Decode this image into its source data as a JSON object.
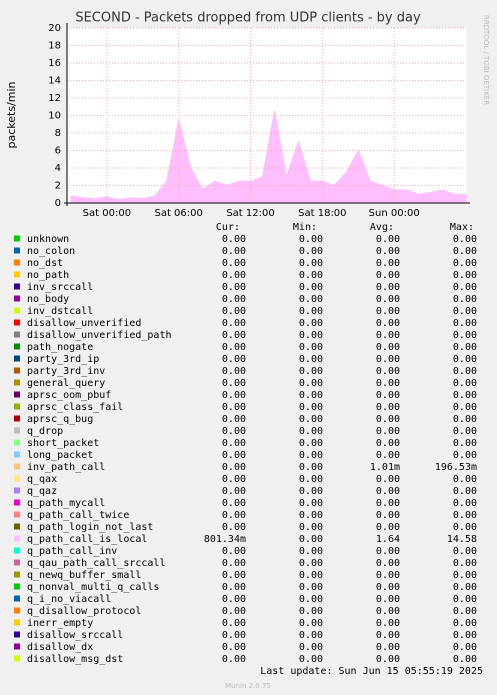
{
  "chart_data": {
    "type": "area",
    "title": "SECOND - Packets dropped from UDP clients - by day",
    "y_label": "packets/min",
    "side_label": "RRDTOOL / TOBI OETIKER",
    "x": [
      -3,
      -2,
      -1,
      0,
      1,
      2,
      3,
      4,
      5,
      6,
      7,
      8,
      9,
      10,
      11,
      12,
      13,
      14,
      15,
      16,
      17,
      18,
      19,
      20,
      21,
      22,
      23,
      24,
      25,
      26,
      27,
      28,
      29,
      30
    ],
    "series": [
      {
        "name": "q_path_call_is_local",
        "color": "#ffbfff",
        "values": [
          0.8,
          0.6,
          0.5,
          0.7,
          0.4,
          0.6,
          0.5,
          0.8,
          2.5,
          9.5,
          4,
          1.5,
          2.5,
          2,
          2.5,
          2.5,
          3,
          10.5,
          3,
          7,
          2.5,
          2.5,
          2,
          3.5,
          6,
          2.5,
          2,
          1.5,
          1.5,
          1,
          1.2,
          1.5,
          1,
          1
        ]
      }
    ],
    "xlim": [
      -3.33,
      30
    ],
    "xticks": [
      {
        "value": 0,
        "label": "Sat 00:00"
      },
      {
        "value": 6,
        "label": "Sat 06:00"
      },
      {
        "value": 12,
        "label": "Sat 12:00"
      },
      {
        "value": 18,
        "label": "Sat 18:00"
      },
      {
        "value": 24,
        "label": "Sun 00:00"
      }
    ],
    "ylim": [
      0,
      20
    ],
    "yticks": [
      0,
      2,
      4,
      6,
      8,
      10,
      12,
      14,
      16,
      18,
      20
    ],
    "grid": true
  },
  "legend": {
    "headers": [
      "Cur:",
      "Min:",
      "Avg:",
      "Max:"
    ],
    "rows": [
      {
        "name": "unknown",
        "color": "#00cc00",
        "stats": [
          "0.00",
          "0.00",
          "0.00",
          "0.00"
        ]
      },
      {
        "name": "no_colon",
        "color": "#0066b3",
        "stats": [
          "0.00",
          "0.00",
          "0.00",
          "0.00"
        ]
      },
      {
        "name": "no_dst",
        "color": "#ff8000",
        "stats": [
          "0.00",
          "0.00",
          "0.00",
          "0.00"
        ]
      },
      {
        "name": "no_path",
        "color": "#ffcc00",
        "stats": [
          "0.00",
          "0.00",
          "0.00",
          "0.00"
        ]
      },
      {
        "name": "inv_srccall",
        "color": "#330099",
        "stats": [
          "0.00",
          "0.00",
          "0.00",
          "0.00"
        ]
      },
      {
        "name": "no_body",
        "color": "#990099",
        "stats": [
          "0.00",
          "0.00",
          "0.00",
          "0.00"
        ]
      },
      {
        "name": "inv_dstcall",
        "color": "#ccff00",
        "stats": [
          "0.00",
          "0.00",
          "0.00",
          "0.00"
        ]
      },
      {
        "name": "disallow_unverified",
        "color": "#ff0000",
        "stats": [
          "0.00",
          "0.00",
          "0.00",
          "0.00"
        ]
      },
      {
        "name": "disallow_unverified_path",
        "color": "#808080",
        "stats": [
          "0.00",
          "0.00",
          "0.00",
          "0.00"
        ]
      },
      {
        "name": "path_nogate",
        "color": "#008f00",
        "stats": [
          "0.00",
          "0.00",
          "0.00",
          "0.00"
        ]
      },
      {
        "name": "party_3rd_ip",
        "color": "#00487d",
        "stats": [
          "0.00",
          "0.00",
          "0.00",
          "0.00"
        ]
      },
      {
        "name": "party_3rd_inv",
        "color": "#b35a00",
        "stats": [
          "0.00",
          "0.00",
          "0.00",
          "0.00"
        ]
      },
      {
        "name": "general_query",
        "color": "#b38f00",
        "stats": [
          "0.00",
          "0.00",
          "0.00",
          "0.00"
        ]
      },
      {
        "name": "aprsc_oom_pbuf",
        "color": "#6b006b",
        "stats": [
          "0.00",
          "0.00",
          "0.00",
          "0.00"
        ]
      },
      {
        "name": "aprsc_class_fail",
        "color": "#8fb300",
        "stats": [
          "0.00",
          "0.00",
          "0.00",
          "0.00"
        ]
      },
      {
        "name": "aprsc_q_bug",
        "color": "#b30000",
        "stats": [
          "0.00",
          "0.00",
          "0.00",
          "0.00"
        ]
      },
      {
        "name": "q_drop",
        "color": "#bebebe",
        "stats": [
          "0.00",
          "0.00",
          "0.00",
          "0.00"
        ]
      },
      {
        "name": "short_packet",
        "color": "#80ff80",
        "stats": [
          "0.00",
          "0.00",
          "0.00",
          "0.00"
        ]
      },
      {
        "name": "long_packet",
        "color": "#80c9ff",
        "stats": [
          "0.00",
          "0.00",
          "0.00",
          "0.00"
        ]
      },
      {
        "name": "inv_path_call",
        "color": "#ffc080",
        "stats": [
          "0.00",
          "0.00",
          "1.01m",
          "196.53m"
        ]
      },
      {
        "name": "q_qax",
        "color": "#ffe680",
        "stats": [
          "0.00",
          "0.00",
          "0.00",
          "0.00"
        ]
      },
      {
        "name": "q_qaz",
        "color": "#aa80ff",
        "stats": [
          "0.00",
          "0.00",
          "0.00",
          "0.00"
        ]
      },
      {
        "name": "q_path_mycall",
        "color": "#ee00cc",
        "stats": [
          "0.00",
          "0.00",
          "0.00",
          "0.00"
        ]
      },
      {
        "name": "q_path_call_twice",
        "color": "#ff8080",
        "stats": [
          "0.00",
          "0.00",
          "0.00",
          "0.00"
        ]
      },
      {
        "name": "q_path_login_not_last",
        "color": "#666600",
        "stats": [
          "0.00",
          "0.00",
          "0.00",
          "0.00"
        ]
      },
      {
        "name": "q_path_call_is_local",
        "color": "#ffbfff",
        "stats": [
          "801.34m",
          "0.00",
          "1.64",
          "14.58"
        ]
      },
      {
        "name": "q_path_call_inv",
        "color": "#00ffcc",
        "stats": [
          "0.00",
          "0.00",
          "0.00",
          "0.00"
        ]
      },
      {
        "name": "q_qau_path_call_srccall",
        "color": "#cc6699",
        "stats": [
          "0.00",
          "0.00",
          "0.00",
          "0.00"
        ]
      },
      {
        "name": "q_newq_buffer_small",
        "color": "#999900",
        "stats": [
          "0.00",
          "0.00",
          "0.00",
          "0.00"
        ]
      },
      {
        "name": "q_nonval_multi_q_calls",
        "color": "#00cc00",
        "stats": [
          "0.00",
          "0.00",
          "0.00",
          "0.00"
        ]
      },
      {
        "name": "q_i_no_viacall",
        "color": "#0066b3",
        "stats": [
          "0.00",
          "0.00",
          "0.00",
          "0.00"
        ]
      },
      {
        "name": "q_disallow_protocol",
        "color": "#ff8000",
        "stats": [
          "0.00",
          "0.00",
          "0.00",
          "0.00"
        ]
      },
      {
        "name": "inerr_empty",
        "color": "#ffcc00",
        "stats": [
          "0.00",
          "0.00",
          "0.00",
          "0.00"
        ]
      },
      {
        "name": "disallow_srccall",
        "color": "#330099",
        "stats": [
          "0.00",
          "0.00",
          "0.00",
          "0.00"
        ]
      },
      {
        "name": "disallow_dx",
        "color": "#990099",
        "stats": [
          "0.00",
          "0.00",
          "0.00",
          "0.00"
        ]
      },
      {
        "name": "disallow_msg_dst",
        "color": "#ccff00",
        "stats": [
          "0.00",
          "0.00",
          "0.00",
          "0.00"
        ]
      }
    ]
  },
  "footer": {
    "last_update": "Last update: Sun Jun 15 05:55:19 2025",
    "version": "Munin 2.0.75"
  }
}
